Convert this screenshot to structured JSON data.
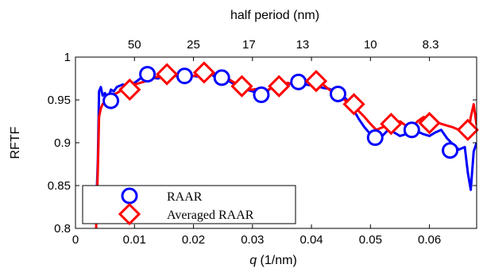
{
  "chart_data": {
    "type": "line",
    "ylabel": "RFTF",
    "xlabel_symbol": "q",
    "xlabel_unit": " (1/nm)",
    "top_xlabel": "half period (nm)",
    "xlim": [
      0,
      0.068
    ],
    "ylim": [
      0.8,
      1.0
    ],
    "x_ticks": [
      0,
      0.01,
      0.02,
      0.03,
      0.04,
      0.05,
      0.06
    ],
    "x_tick_labels": [
      "0",
      "0.01",
      "0.02",
      "0.03",
      "0.04",
      "0.05",
      "0.06"
    ],
    "y_ticks": [
      0.8,
      0.85,
      0.9,
      0.95,
      1.0
    ],
    "y_tick_labels": [
      "0.8",
      "0.85",
      "0.9",
      "0.95",
      "1"
    ],
    "top_ticks": [
      0.01,
      0.02,
      0.0294,
      0.0385,
      0.05,
      0.0602
    ],
    "top_tick_labels": [
      "50",
      "25",
      "17",
      "13",
      "10",
      "8.3"
    ],
    "legend_position": "bottom-left",
    "series": [
      {
        "name": "RAAR",
        "color": "#0000ff",
        "marker": "circle",
        "x": [
          0.0035,
          0.0038,
          0.004,
          0.0043,
          0.0046,
          0.005,
          0.0055,
          0.006,
          0.0065,
          0.007,
          0.008,
          0.009,
          0.01,
          0.011,
          0.0122,
          0.013,
          0.014,
          0.015,
          0.016,
          0.017,
          0.018,
          0.019,
          0.02,
          0.021,
          0.022,
          0.023,
          0.024,
          0.025,
          0.026,
          0.027,
          0.028,
          0.029,
          0.03,
          0.031,
          0.032,
          0.033,
          0.034,
          0.035,
          0.036,
          0.037,
          0.038,
          0.039,
          0.04,
          0.041,
          0.042,
          0.043,
          0.044,
          0.045,
          0.046,
          0.047,
          0.048,
          0.049,
          0.05,
          0.051,
          0.052,
          0.053,
          0.054,
          0.055,
          0.056,
          0.057,
          0.058,
          0.059,
          0.06,
          0.061,
          0.062,
          0.063,
          0.064,
          0.065,
          0.066,
          0.0665,
          0.067,
          0.0675,
          0.068
        ],
        "y": [
          0.82,
          0.88,
          0.96,
          0.965,
          0.955,
          0.958,
          0.95,
          0.962,
          0.96,
          0.965,
          0.968,
          0.966,
          0.97,
          0.975,
          0.98,
          0.976,
          0.975,
          0.978,
          0.976,
          0.98,
          0.978,
          0.979,
          0.978,
          0.977,
          0.976,
          0.98,
          0.975,
          0.975,
          0.972,
          0.968,
          0.965,
          0.962,
          0.96,
          0.958,
          0.957,
          0.963,
          0.968,
          0.966,
          0.968,
          0.97,
          0.971,
          0.968,
          0.967,
          0.966,
          0.964,
          0.963,
          0.96,
          0.958,
          0.95,
          0.94,
          0.928,
          0.918,
          0.91,
          0.906,
          0.908,
          0.915,
          0.912,
          0.908,
          0.91,
          0.915,
          0.913,
          0.91,
          0.908,
          0.912,
          0.915,
          0.905,
          0.898,
          0.892,
          0.895,
          0.865,
          0.845,
          0.89,
          0.9
        ]
      },
      {
        "name": "Averaged RAAR",
        "color": "#ff0000",
        "marker": "diamond",
        "x": [
          0.0035,
          0.0038,
          0.004,
          0.0043,
          0.0046,
          0.005,
          0.0055,
          0.006,
          0.007,
          0.008,
          0.009,
          0.01,
          0.011,
          0.012,
          0.013,
          0.014,
          0.015,
          0.016,
          0.017,
          0.018,
          0.019,
          0.02,
          0.021,
          0.022,
          0.023,
          0.024,
          0.025,
          0.026,
          0.027,
          0.028,
          0.029,
          0.03,
          0.031,
          0.032,
          0.033,
          0.034,
          0.035,
          0.036,
          0.037,
          0.038,
          0.039,
          0.04,
          0.041,
          0.042,
          0.043,
          0.044,
          0.045,
          0.046,
          0.047,
          0.048,
          0.049,
          0.05,
          0.051,
          0.052,
          0.053,
          0.054,
          0.055,
          0.056,
          0.057,
          0.058,
          0.059,
          0.06,
          0.061,
          0.062,
          0.063,
          0.064,
          0.065,
          0.066,
          0.0665,
          0.067,
          0.0675,
          0.068
        ],
        "y": [
          0.8,
          0.87,
          0.93,
          0.94,
          0.945,
          0.948,
          0.952,
          0.955,
          0.958,
          0.962,
          0.966,
          0.968,
          0.97,
          0.972,
          0.976,
          0.977,
          0.978,
          0.98,
          0.978,
          0.977,
          0.979,
          0.978,
          0.98,
          0.982,
          0.981,
          0.979,
          0.977,
          0.974,
          0.97,
          0.966,
          0.962,
          0.962,
          0.963,
          0.96,
          0.963,
          0.966,
          0.968,
          0.97,
          0.968,
          0.969,
          0.971,
          0.971,
          0.972,
          0.968,
          0.962,
          0.958,
          0.953,
          0.948,
          0.943,
          0.937,
          0.93,
          0.922,
          0.915,
          0.918,
          0.92,
          0.922,
          0.925,
          0.92,
          0.918,
          0.925,
          0.93,
          0.928,
          0.925,
          0.922,
          0.92,
          0.918,
          0.915,
          0.91,
          0.905,
          0.93,
          0.945,
          0.92
        ]
      }
    ],
    "markers": [
      {
        "series": "RAAR",
        "x": [
          0.006,
          0.0122,
          0.0185,
          0.0248,
          0.0315,
          0.0378,
          0.0445,
          0.0508,
          0.057,
          0.0635
        ],
        "y": [
          0.949,
          0.98,
          0.978,
          0.976,
          0.956,
          0.971,
          0.957,
          0.906,
          0.915,
          0.891
        ]
      },
      {
        "series": "Averaged RAAR",
        "x": [
          0.0092,
          0.0155,
          0.0218,
          0.0282,
          0.0345,
          0.0408,
          0.0472,
          0.0535,
          0.06,
          0.0665
        ],
        "y": [
          0.962,
          0.98,
          0.982,
          0.966,
          0.966,
          0.972,
          0.945,
          0.922,
          0.923,
          0.915
        ]
      }
    ]
  }
}
